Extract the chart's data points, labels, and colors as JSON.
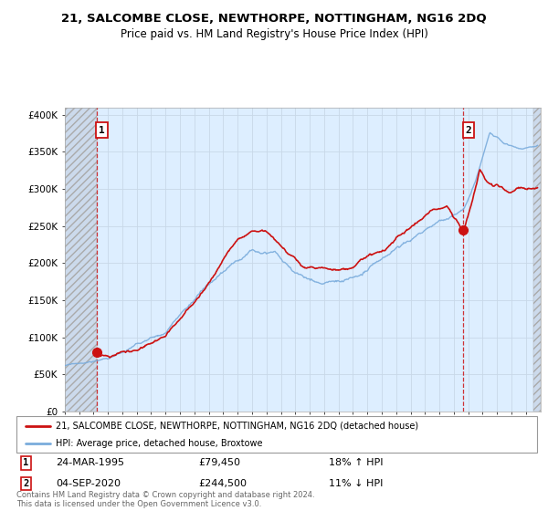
{
  "title": "21, SALCOMBE CLOSE, NEWTHORPE, NOTTINGHAM, NG16 2DQ",
  "subtitle": "Price paid vs. HM Land Registry's House Price Index (HPI)",
  "legend_line1": "21, SALCOMBE CLOSE, NEWTHORPE, NOTTINGHAM, NG16 2DQ (detached house)",
  "legend_line2": "HPI: Average price, detached house, Broxtowe",
  "annotation1_date": "24-MAR-1995",
  "annotation1_price": "£79,450",
  "annotation1_hpi": "18% ↑ HPI",
  "annotation2_date": "04-SEP-2020",
  "annotation2_price": "£244,500",
  "annotation2_hpi": "11% ↓ HPI",
  "footer": "Contains HM Land Registry data © Crown copyright and database right 2024.\nThis data is licensed under the Open Government Licence v3.0.",
  "sale1_year": 1995.22,
  "sale1_price": 79450,
  "sale2_year": 2020.67,
  "sale2_price": 244500,
  "hpi_color": "#7aacdc",
  "price_color": "#cc1111",
  "grid_color": "#c8d8e8",
  "bg_plot": "#ddeeff",
  "ylim": [
    0,
    410000
  ],
  "xlim_start": 1993.0,
  "xlim_end": 2026.0,
  "hatch_end": 2025.5,
  "y_ticks": [
    0,
    50000,
    100000,
    150000,
    200000,
    250000,
    300000,
    350000,
    400000
  ],
  "y_labels": [
    "£0",
    "£50K",
    "£100K",
    "£150K",
    "£200K",
    "£250K",
    "£300K",
    "£350K",
    "£400K"
  ]
}
